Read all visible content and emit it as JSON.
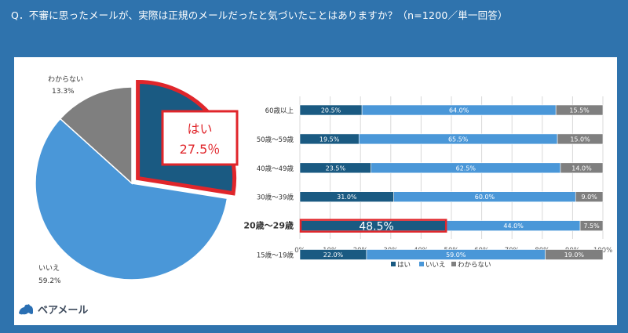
{
  "question": "Q．不審に思ったメールが、実際は正規のメールだったと気づいたことはありますか？（n=1200／単一回答）",
  "brand": {
    "name": "ベアメール"
  },
  "colors": {
    "hai": "#1a5a82",
    "iie": "#4a97d8",
    "wakaranai": "#7f7f7f",
    "highlight": "#e0262b"
  },
  "chart_data": [
    {
      "type": "pie",
      "labels": [
        "はい",
        "いいえ",
        "わからない"
      ],
      "values": [
        27.5,
        59.2,
        13.3
      ],
      "value_labels": [
        "27.5％",
        "59.2%",
        "13.3%"
      ]
    },
    {
      "type": "bar",
      "stacked": true,
      "orientation": "horizontal",
      "categories": [
        "60歳以上",
        "50歳～59歳",
        "40歳～49歳",
        "30歳～39歳",
        "20歳～29歳",
        "15歳～19歳"
      ],
      "series": [
        {
          "name": "はい",
          "values": [
            20.5,
            19.5,
            23.5,
            31.0,
            48.5,
            22.0
          ]
        },
        {
          "name": "いいえ",
          "values": [
            64.0,
            65.5,
            62.5,
            60.0,
            44.0,
            59.0
          ]
        },
        {
          "name": "わからない",
          "values": [
            15.5,
            15.0,
            14.0,
            9.0,
            7.5,
            19.0
          ]
        }
      ],
      "xlim": [
        0,
        100
      ],
      "xticks": [
        "0%",
        "10%",
        "20%",
        "30%",
        "40%",
        "50%",
        "60%",
        "70%",
        "80%",
        "90%",
        "100%"
      ],
      "highlight_category": "20歳～29歳",
      "legend_position": "bottom",
      "grid": true
    }
  ]
}
